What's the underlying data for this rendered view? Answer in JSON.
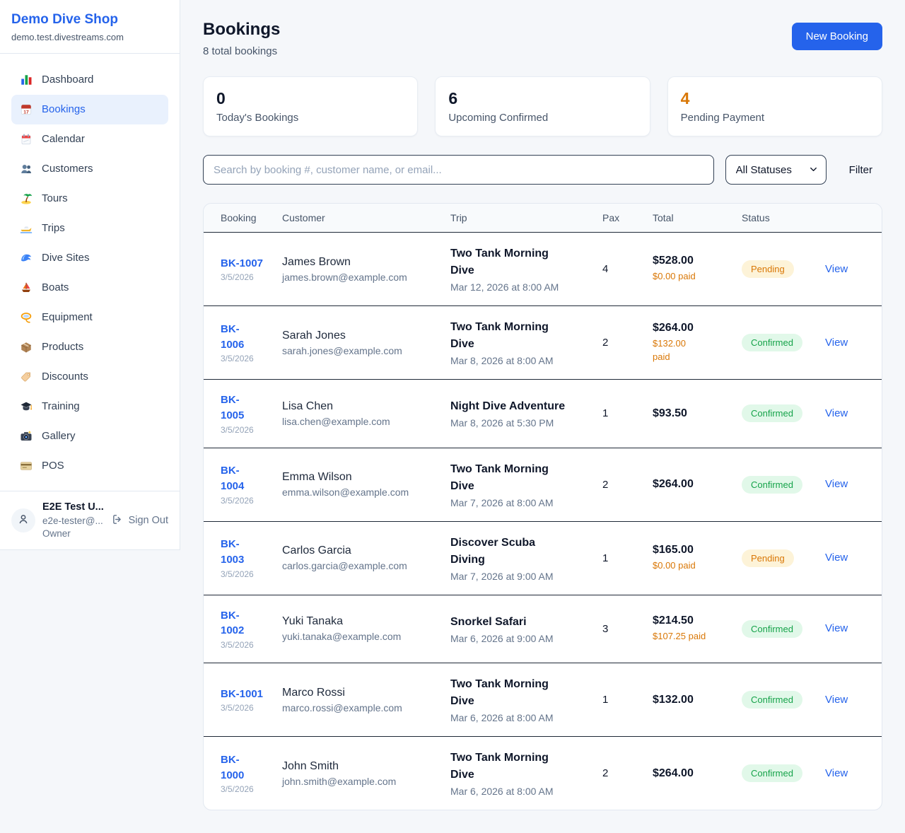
{
  "sidebar": {
    "brand": "Demo Dive Shop",
    "domain": "demo.test.divestreams.com",
    "items": [
      {
        "icon": "bar-chart-icon",
        "label": "Dashboard",
        "active": false
      },
      {
        "icon": "bookings-calendar-icon",
        "label": "Bookings",
        "active": true
      },
      {
        "icon": "spiral-calendar-icon",
        "label": "Calendar",
        "active": false
      },
      {
        "icon": "customers-icon",
        "label": "Customers",
        "active": false
      },
      {
        "icon": "island-icon",
        "label": "Tours",
        "active": false
      },
      {
        "icon": "speedboat-icon",
        "label": "Trips",
        "active": false
      },
      {
        "icon": "wave-icon",
        "label": "Dive Sites",
        "active": false
      },
      {
        "icon": "sailboat-icon",
        "label": "Boats",
        "active": false
      },
      {
        "icon": "dive-mask-icon",
        "label": "Equipment",
        "active": false
      },
      {
        "icon": "package-icon",
        "label": "Products",
        "active": false
      },
      {
        "icon": "tag-icon",
        "label": "Discounts",
        "active": false
      },
      {
        "icon": "graduation-cap-icon",
        "label": "Training",
        "active": false
      },
      {
        "icon": "camera-icon",
        "label": "Gallery",
        "active": false
      },
      {
        "icon": "credit-card-icon",
        "label": "POS",
        "active": false
      }
    ],
    "user": {
      "name": "E2E Test U...",
      "email": "e2e-tester@...",
      "role": "Owner",
      "signout": "Sign Out"
    }
  },
  "header": {
    "title": "Bookings",
    "subtitle": "8 total bookings",
    "new_booking": "New Booking"
  },
  "stats": [
    {
      "value": "0",
      "label": "Today's Bookings"
    },
    {
      "value": "6",
      "label": "Upcoming Confirmed"
    },
    {
      "value": "4",
      "label": "Pending Payment",
      "value_color": "#d97706"
    }
  ],
  "filters": {
    "search_placeholder": "Search by booking #, customer name, or email...",
    "status_value": "All Statuses",
    "filter_label": "Filter"
  },
  "table": {
    "columns": [
      "Booking",
      "Customer",
      "Trip",
      "Pax",
      "Total",
      "Status",
      ""
    ],
    "rows": [
      {
        "id_lines": [
          "BK-1007"
        ],
        "date": "3/5/2026",
        "name": "James Brown",
        "email": "james.brown@example.com",
        "trip": "Two Tank Morning Dive",
        "trip_date": "Mar 12, 2026 at 8:00 AM",
        "pax": "4",
        "total": "$528.00",
        "paid_lines": [
          "$0.00 paid"
        ],
        "status": "Pending",
        "view": "View"
      },
      {
        "id_lines": [
          "BK-",
          "1006"
        ],
        "date": "3/5/2026",
        "name": "Sarah Jones",
        "email": "sarah.jones@example.com",
        "trip": "Two Tank Morning Dive",
        "trip_date": "Mar 8, 2026 at 8:00 AM",
        "pax": "2",
        "total": "$264.00",
        "paid_lines": [
          "$132.00",
          "paid"
        ],
        "status": "Confirmed",
        "view": "View"
      },
      {
        "id_lines": [
          "BK-",
          "1005"
        ],
        "date": "3/5/2026",
        "name": "Lisa Chen",
        "email": "lisa.chen@example.com",
        "trip": "Night Dive Adventure",
        "trip_date": "Mar 8, 2026 at 5:30 PM",
        "pax": "1",
        "total": "$93.50",
        "paid_lines": [],
        "status": "Confirmed",
        "view": "View"
      },
      {
        "id_lines": [
          "BK-",
          "1004"
        ],
        "date": "3/5/2026",
        "name": "Emma Wilson",
        "email": "emma.wilson@example.com",
        "trip": "Two Tank Morning Dive",
        "trip_date": "Mar 7, 2026 at 8:00 AM",
        "pax": "2",
        "total": "$264.00",
        "paid_lines": [],
        "status": "Confirmed",
        "view": "View"
      },
      {
        "id_lines": [
          "BK-",
          "1003"
        ],
        "date": "3/5/2026",
        "name": "Carlos Garcia",
        "email": "carlos.garcia@example.com",
        "trip": "Discover Scuba Diving",
        "trip_date": "Mar 7, 2026 at 9:00 AM",
        "pax": "1",
        "total": "$165.00",
        "paid_lines": [
          "$0.00 paid"
        ],
        "status": "Pending",
        "view": "View"
      },
      {
        "id_lines": [
          "BK-",
          "1002"
        ],
        "date": "3/5/2026",
        "name": "Yuki Tanaka",
        "email": "yuki.tanaka@example.com",
        "trip": "Snorkel Safari",
        "trip_date": "Mar 6, 2026 at 9:00 AM",
        "pax": "3",
        "total": "$214.50",
        "paid_lines": [
          "$107.25 paid"
        ],
        "status": "Confirmed",
        "view": "View"
      },
      {
        "id_lines": [
          "BK-1001"
        ],
        "date": "3/5/2026",
        "name": "Marco Rossi",
        "email": "marco.rossi@example.com",
        "trip": "Two Tank Morning Dive",
        "trip_date": "Mar 6, 2026 at 8:00 AM",
        "pax": "1",
        "total": "$132.00",
        "paid_lines": [],
        "status": "Confirmed",
        "view": "View"
      },
      {
        "id_lines": [
          "BK-",
          "1000"
        ],
        "date": "3/5/2026",
        "name": "John Smith",
        "email": "john.smith@example.com",
        "trip": "Two Tank Morning Dive",
        "trip_date": "Mar 6, 2026 at 8:00 AM",
        "pax": "2",
        "total": "$264.00",
        "paid_lines": [],
        "status": "Confirmed",
        "view": "View"
      }
    ]
  },
  "colors": {
    "brand_blue": "#2563eb",
    "pending_text": "#d97706",
    "pending_bg": "#fdf3d8",
    "confirmed_text": "#16a34a",
    "confirmed_bg": "#e1f8e9",
    "paid_orange": "#d97706"
  }
}
